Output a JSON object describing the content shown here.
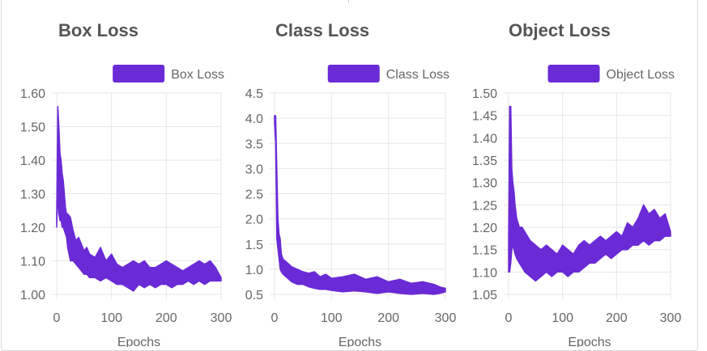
{
  "colors": {
    "series": "#6a2ad6",
    "grid": "#e6e6e6",
    "text": "#666666",
    "title": "#555555"
  },
  "chart_data": [
    {
      "type": "line",
      "title": "Box Loss",
      "xlabel": "Epochs",
      "ylabel": "",
      "xlim": [
        0,
        300
      ],
      "ylim": [
        1.0,
        1.6
      ],
      "xticks": [
        "0",
        "100",
        "200",
        "300"
      ],
      "yticks": [
        "1.00",
        "1.10",
        "1.20",
        "1.30",
        "1.40",
        "1.50",
        "1.60"
      ],
      "legend": "top-right",
      "series": [
        {
          "name": "Box Loss",
          "x": [
            0,
            2,
            4,
            6,
            8,
            10,
            12,
            14,
            16,
            18,
            20,
            25,
            30,
            35,
            40,
            45,
            50,
            55,
            60,
            70,
            80,
            90,
            100,
            110,
            120,
            130,
            140,
            150,
            160,
            170,
            180,
            190,
            200,
            210,
            220,
            230,
            240,
            250,
            260,
            270,
            280,
            290,
            300
          ],
          "upper": [
            1.24,
            1.56,
            1.5,
            1.42,
            1.4,
            1.36,
            1.34,
            1.3,
            1.26,
            1.24,
            1.24,
            1.23,
            1.19,
            1.16,
            1.17,
            1.15,
            1.13,
            1.14,
            1.12,
            1.11,
            1.14,
            1.1,
            1.12,
            1.09,
            1.08,
            1.09,
            1.1,
            1.09,
            1.1,
            1.08,
            1.08,
            1.09,
            1.1,
            1.09,
            1.08,
            1.07,
            1.08,
            1.09,
            1.1,
            1.09,
            1.1,
            1.08,
            1.05
          ],
          "lower": [
            1.2,
            1.3,
            1.24,
            1.22,
            1.22,
            1.2,
            1.2,
            1.19,
            1.18,
            1.17,
            1.14,
            1.1,
            1.1,
            1.09,
            1.08,
            1.07,
            1.06,
            1.06,
            1.05,
            1.05,
            1.04,
            1.05,
            1.04,
            1.03,
            1.03,
            1.02,
            1.01,
            1.03,
            1.02,
            1.03,
            1.02,
            1.03,
            1.03,
            1.02,
            1.03,
            1.03,
            1.04,
            1.03,
            1.04,
            1.03,
            1.04,
            1.04,
            1.04
          ]
        }
      ]
    },
    {
      "type": "line",
      "title": "Class Loss",
      "xlabel": "Epochs",
      "ylabel": "",
      "xlim": [
        0,
        300
      ],
      "ylim": [
        0.5,
        4.5
      ],
      "xticks": [
        "0",
        "100",
        "200",
        "300"
      ],
      "yticks": [
        "0.5",
        "1.0",
        "1.5",
        "2.0",
        "2.5",
        "3.0",
        "3.5",
        "4.0",
        "4.5"
      ],
      "legend": "top-right",
      "series": [
        {
          "name": "Class Loss",
          "x": [
            0,
            2,
            4,
            6,
            8,
            10,
            12,
            15,
            20,
            25,
            30,
            40,
            50,
            60,
            70,
            80,
            90,
            100,
            120,
            140,
            160,
            180,
            200,
            220,
            240,
            260,
            280,
            290,
            300
          ],
          "upper": [
            4.05,
            4.05,
            3.0,
            2.0,
            1.7,
            1.6,
            1.3,
            1.2,
            1.15,
            1.1,
            1.05,
            1.0,
            0.95,
            0.92,
            0.95,
            0.85,
            0.9,
            0.82,
            0.85,
            0.9,
            0.8,
            0.85,
            0.75,
            0.8,
            0.72,
            0.75,
            0.7,
            0.65,
            0.62
          ],
          "lower": [
            3.9,
            3.5,
            1.6,
            1.4,
            1.2,
            1.0,
            0.95,
            0.9,
            0.85,
            0.8,
            0.75,
            0.7,
            0.7,
            0.65,
            0.62,
            0.6,
            0.6,
            0.58,
            0.55,
            0.57,
            0.55,
            0.52,
            0.55,
            0.52,
            0.5,
            0.52,
            0.5,
            0.52,
            0.55
          ]
        }
      ]
    },
    {
      "type": "line",
      "title": "Object Loss",
      "xlabel": "Epochs",
      "ylabel": "",
      "xlim": [
        0,
        300
      ],
      "ylim": [
        1.05,
        1.5
      ],
      "xticks": [
        "0",
        "100",
        "200",
        "300"
      ],
      "yticks": [
        "1.05",
        "1.10",
        "1.15",
        "1.20",
        "1.25",
        "1.30",
        "1.35",
        "1.40",
        "1.45",
        "1.50"
      ],
      "legend": "top-right",
      "series": [
        {
          "name": "Object Loss",
          "x": [
            0,
            2,
            4,
            6,
            8,
            10,
            12,
            15,
            20,
            25,
            30,
            40,
            50,
            60,
            70,
            80,
            90,
            100,
            110,
            120,
            130,
            140,
            150,
            160,
            170,
            180,
            190,
            200,
            210,
            220,
            230,
            240,
            250,
            260,
            270,
            280,
            290,
            300
          ],
          "upper": [
            1.17,
            1.47,
            1.47,
            1.33,
            1.3,
            1.28,
            1.25,
            1.22,
            1.2,
            1.2,
            1.19,
            1.17,
            1.16,
            1.15,
            1.16,
            1.15,
            1.14,
            1.16,
            1.15,
            1.14,
            1.16,
            1.17,
            1.16,
            1.17,
            1.18,
            1.17,
            1.18,
            1.19,
            1.18,
            1.21,
            1.2,
            1.22,
            1.25,
            1.23,
            1.24,
            1.22,
            1.23,
            1.19
          ],
          "lower": [
            1.1,
            1.1,
            1.12,
            1.15,
            1.16,
            1.15,
            1.14,
            1.13,
            1.12,
            1.11,
            1.1,
            1.09,
            1.08,
            1.09,
            1.1,
            1.09,
            1.1,
            1.1,
            1.09,
            1.1,
            1.1,
            1.11,
            1.12,
            1.12,
            1.13,
            1.14,
            1.13,
            1.14,
            1.15,
            1.15,
            1.16,
            1.16,
            1.17,
            1.16,
            1.17,
            1.17,
            1.18,
            1.18
          ]
        }
      ]
    }
  ]
}
